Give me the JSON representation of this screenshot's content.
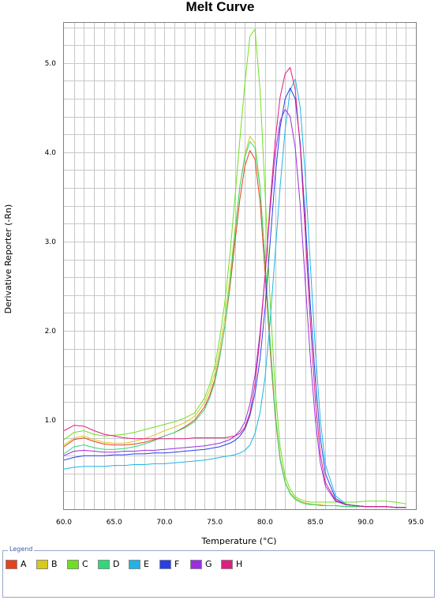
{
  "chart_data": {
    "type": "line",
    "title": "Melt Curve",
    "xlabel": "Temperature (°C)",
    "ylabel": "Derivative Reporter (-Rn)",
    "xlim": [
      60.0,
      95.0
    ],
    "ylim": [
      0.0,
      5.45
    ],
    "x_ticks": [
      "60.0",
      "65.0",
      "70.0",
      "75.0",
      "80.0",
      "85.0",
      "90.0",
      "95.0"
    ],
    "y_ticks": [
      "1.0",
      "2.0",
      "3.0",
      "4.0",
      "5.0"
    ],
    "grid": true,
    "legend_position": "bottom",
    "x": [
      60.0,
      61.0,
      62.0,
      63.0,
      64.0,
      65.0,
      66.0,
      67.0,
      68.0,
      69.0,
      70.0,
      71.0,
      72.0,
      73.0,
      74.0,
      74.5,
      75.0,
      75.5,
      76.0,
      76.5,
      77.0,
      77.5,
      78.0,
      78.5,
      79.0,
      79.5,
      80.0,
      80.5,
      81.0,
      81.5,
      82.0,
      82.5,
      83.0,
      83.5,
      84.0,
      84.5,
      85.0,
      85.5,
      86.0,
      87.0,
      88.0,
      89.0,
      90.0,
      91.0,
      92.0,
      93.0,
      94.0
    ],
    "series": [
      {
        "name": "A",
        "color": "#e8401a",
        "values": [
          0.7,
          0.78,
          0.8,
          0.76,
          0.73,
          0.72,
          0.72,
          0.73,
          0.75,
          0.78,
          0.82,
          0.86,
          0.92,
          1.0,
          1.15,
          1.28,
          1.45,
          1.72,
          2.05,
          2.48,
          2.98,
          3.48,
          3.85,
          4.02,
          3.92,
          3.45,
          2.65,
          1.8,
          1.05,
          0.55,
          0.3,
          0.18,
          0.12,
          0.09,
          0.07,
          0.06,
          0.05,
          0.05,
          0.04,
          0.04,
          0.03,
          0.03,
          0.03,
          0.03,
          0.03,
          0.02,
          0.02
        ]
      },
      {
        "name": "B",
        "color": "#d8c81a",
        "values": [
          0.72,
          0.8,
          0.82,
          0.78,
          0.75,
          0.74,
          0.74,
          0.76,
          0.79,
          0.83,
          0.88,
          0.92,
          0.97,
          1.04,
          1.2,
          1.34,
          1.52,
          1.8,
          2.15,
          2.6,
          3.12,
          3.62,
          3.98,
          4.18,
          4.1,
          3.62,
          2.8,
          1.9,
          1.1,
          0.58,
          0.31,
          0.18,
          0.12,
          0.09,
          0.07,
          0.06,
          0.05,
          0.05,
          0.04,
          0.04,
          0.03,
          0.03,
          0.03,
          0.03,
          0.03,
          0.02,
          0.02
        ]
      },
      {
        "name": "C",
        "color": "#6ee01e",
        "values": [
          0.78,
          0.86,
          0.88,
          0.84,
          0.82,
          0.83,
          0.84,
          0.86,
          0.89,
          0.92,
          0.95,
          0.98,
          1.02,
          1.08,
          1.25,
          1.4,
          1.6,
          1.92,
          2.32,
          2.85,
          3.48,
          4.15,
          4.78,
          5.3,
          5.38,
          4.7,
          3.55,
          2.35,
          1.35,
          0.7,
          0.37,
          0.22,
          0.14,
          0.11,
          0.09,
          0.08,
          0.08,
          0.08,
          0.08,
          0.08,
          0.08,
          0.08,
          0.09,
          0.09,
          0.09,
          0.08,
          0.06
        ]
      },
      {
        "name": "D",
        "color": "#2ed878",
        "values": [
          0.62,
          0.7,
          0.72,
          0.69,
          0.67,
          0.67,
          0.68,
          0.7,
          0.73,
          0.77,
          0.82,
          0.86,
          0.91,
          0.98,
          1.12,
          1.25,
          1.42,
          1.7,
          2.05,
          2.52,
          3.08,
          3.62,
          3.95,
          4.12,
          4.05,
          3.6,
          2.78,
          1.88,
          1.08,
          0.56,
          0.3,
          0.17,
          0.11,
          0.08,
          0.06,
          0.05,
          0.05,
          0.04,
          0.04,
          0.04,
          0.03,
          0.03,
          0.03,
          0.03,
          0.03,
          0.02,
          0.02
        ]
      },
      {
        "name": "E",
        "color": "#1eb4e6",
        "values": [
          0.45,
          0.47,
          0.48,
          0.48,
          0.48,
          0.49,
          0.49,
          0.5,
          0.5,
          0.51,
          0.51,
          0.52,
          0.53,
          0.54,
          0.55,
          0.56,
          0.57,
          0.58,
          0.59,
          0.6,
          0.61,
          0.63,
          0.66,
          0.72,
          0.85,
          1.08,
          1.48,
          2.1,
          2.85,
          3.62,
          4.25,
          4.7,
          4.82,
          4.5,
          3.75,
          2.75,
          1.78,
          1.0,
          0.5,
          0.15,
          0.06,
          0.04,
          0.03,
          0.03,
          0.03,
          0.02,
          0.02
        ]
      },
      {
        "name": "F",
        "color": "#2a3ee8",
        "values": [
          0.55,
          0.58,
          0.6,
          0.6,
          0.6,
          0.61,
          0.61,
          0.62,
          0.62,
          0.63,
          0.63,
          0.64,
          0.65,
          0.66,
          0.67,
          0.68,
          0.69,
          0.7,
          0.72,
          0.74,
          0.77,
          0.82,
          0.9,
          1.05,
          1.3,
          1.68,
          2.25,
          2.98,
          3.72,
          4.28,
          4.6,
          4.72,
          4.6,
          4.1,
          3.25,
          2.3,
          1.45,
          0.8,
          0.4,
          0.12,
          0.05,
          0.04,
          0.03,
          0.03,
          0.03,
          0.02,
          0.02
        ]
      },
      {
        "name": "G",
        "color": "#9a2ee0",
        "values": [
          0.6,
          0.65,
          0.66,
          0.65,
          0.64,
          0.64,
          0.65,
          0.65,
          0.66,
          0.66,
          0.67,
          0.68,
          0.69,
          0.7,
          0.71,
          0.72,
          0.73,
          0.74,
          0.76,
          0.78,
          0.82,
          0.88,
          0.98,
          1.18,
          1.5,
          1.98,
          2.62,
          3.35,
          3.98,
          4.35,
          4.48,
          4.4,
          4.05,
          3.4,
          2.55,
          1.7,
          1.0,
          0.52,
          0.26,
          0.09,
          0.05,
          0.04,
          0.03,
          0.03,
          0.03,
          0.02,
          0.02
        ]
      },
      {
        "name": "H",
        "color": "#e01e82",
        "values": [
          0.88,
          0.94,
          0.93,
          0.88,
          0.84,
          0.82,
          0.8,
          0.79,
          0.79,
          0.79,
          0.79,
          0.79,
          0.79,
          0.8,
          0.8,
          0.8,
          0.8,
          0.8,
          0.8,
          0.81,
          0.82,
          0.85,
          0.92,
          1.08,
          1.4,
          1.92,
          2.62,
          3.42,
          4.12,
          4.62,
          4.88,
          4.95,
          4.7,
          4.05,
          3.1,
          2.1,
          1.22,
          0.62,
          0.3,
          0.1,
          0.05,
          0.04,
          0.03,
          0.03,
          0.03,
          0.02,
          0.02
        ]
      }
    ]
  },
  "legend": {
    "title": "Legend",
    "items": [
      {
        "label": "A",
        "color": "#e8401a"
      },
      {
        "label": "B",
        "color": "#d8c81a"
      },
      {
        "label": "C",
        "color": "#6ee01e"
      },
      {
        "label": "D",
        "color": "#2ed878"
      },
      {
        "label": "E",
        "color": "#1eb4e6"
      },
      {
        "label": "F",
        "color": "#2a3ee8"
      },
      {
        "label": "G",
        "color": "#9a2ee0"
      },
      {
        "label": "H",
        "color": "#e01e82"
      }
    ]
  }
}
